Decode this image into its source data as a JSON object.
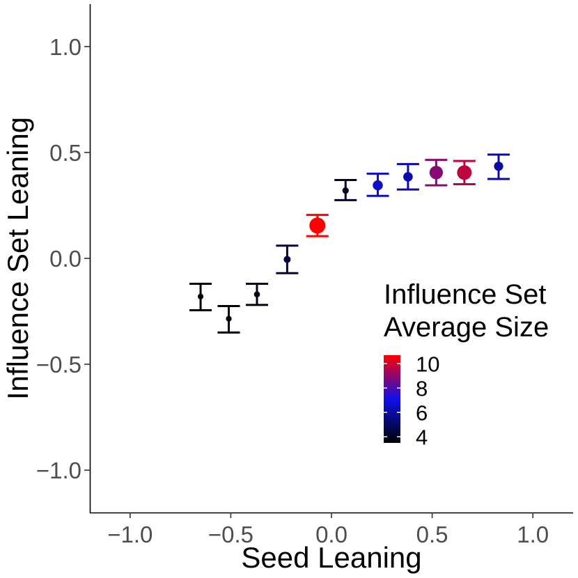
{
  "chart_data": {
    "type": "scatter",
    "title": "",
    "xlabel": "Seed Leaning",
    "ylabel": "Influence Set Leaning",
    "xlim": [
      -1.2,
      1.2
    ],
    "ylim": [
      -1.2,
      1.2
    ],
    "x_ticks": [
      -1.0,
      -0.5,
      0.0,
      0.5,
      1.0
    ],
    "y_ticks": [
      -1.0,
      -0.5,
      0.0,
      0.5,
      1.0
    ],
    "x_tick_labels": [
      "−1.0",
      "−0.5",
      "0.0",
      "0.5",
      "1.0"
    ],
    "y_tick_labels": [
      "−1.0",
      "−0.5",
      "0.0",
      "0.5",
      "1.0"
    ],
    "grid": false,
    "legend": {
      "title_lines": [
        "Influence Set",
        "Average Size"
      ],
      "position": "right",
      "colorbar_min": 3.5,
      "colorbar_max": 10.7,
      "ticks": [
        4,
        6,
        8,
        10
      ],
      "tick_labels": [
        "4",
        "6",
        "8",
        "10"
      ],
      "colors": [
        "#000000",
        "#1010e8",
        "#ff0000"
      ]
    },
    "points": [
      {
        "x": -0.65,
        "y": -0.18,
        "ymin": -0.245,
        "ymax": -0.12,
        "size": 3.6
      },
      {
        "x": -0.51,
        "y": -0.285,
        "ymin": -0.35,
        "ymax": -0.225,
        "size": 3.6
      },
      {
        "x": -0.37,
        "y": -0.17,
        "ymin": -0.22,
        "ymax": -0.12,
        "size": 3.8
      },
      {
        "x": -0.22,
        "y": -0.005,
        "ymin": -0.07,
        "ymax": 0.06,
        "size": 4.5
      },
      {
        "x": -0.07,
        "y": 0.155,
        "ymin": 0.105,
        "ymax": 0.205,
        "size": 10.7
      },
      {
        "x": 0.07,
        "y": 0.32,
        "ymin": 0.275,
        "ymax": 0.37,
        "size": 4.1
      },
      {
        "x": 0.23,
        "y": 0.345,
        "ymin": 0.295,
        "ymax": 0.4,
        "size": 6.6
      },
      {
        "x": 0.38,
        "y": 0.385,
        "ymin": 0.325,
        "ymax": 0.445,
        "size": 6.2
      },
      {
        "x": 0.52,
        "y": 0.405,
        "ymin": 0.345,
        "ymax": 0.465,
        "size": 8.9
      },
      {
        "x": 0.66,
        "y": 0.405,
        "ymin": 0.35,
        "ymax": 0.46,
        "size": 9.7
      },
      {
        "x": 0.83,
        "y": 0.435,
        "ymin": 0.375,
        "ymax": 0.49,
        "size": 6.0
      }
    ]
  }
}
